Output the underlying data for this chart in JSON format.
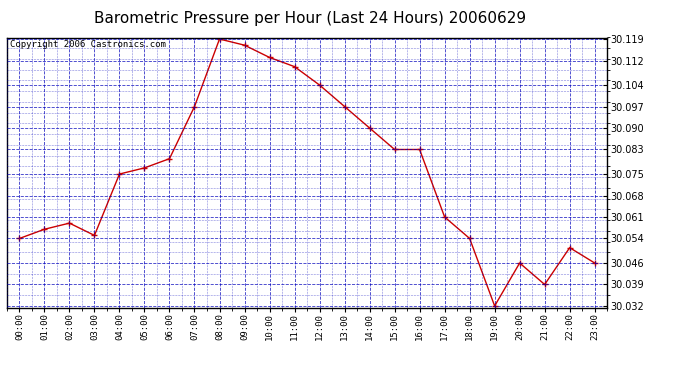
{
  "title": "Barometric Pressure per Hour (Last 24 Hours) 20060629",
  "copyright": "Copyright 2006 Castronics.com",
  "hours": [
    "00:00",
    "01:00",
    "02:00",
    "03:00",
    "04:00",
    "05:00",
    "06:00",
    "07:00",
    "08:00",
    "09:00",
    "10:00",
    "11:00",
    "12:00",
    "13:00",
    "14:00",
    "15:00",
    "16:00",
    "17:00",
    "18:00",
    "19:00",
    "20:00",
    "21:00",
    "22:00",
    "23:00"
  ],
  "values": [
    30.054,
    30.057,
    30.059,
    30.055,
    30.075,
    30.077,
    30.08,
    30.097,
    30.119,
    30.117,
    30.113,
    30.11,
    30.104,
    30.097,
    30.09,
    30.083,
    30.083,
    30.061,
    30.054,
    30.032,
    30.046,
    30.039,
    30.051,
    30.046
  ],
  "ylim_min": 30.032,
  "ylim_max": 30.119,
  "yticks": [
    30.032,
    30.039,
    30.046,
    30.054,
    30.061,
    30.068,
    30.075,
    30.083,
    30.09,
    30.097,
    30.104,
    30.112,
    30.119
  ],
  "line_color": "#cc0000",
  "marker_color": "#cc0000",
  "plot_bg": "#ffffff",
  "grid_color": "#0000bb",
  "title_fontsize": 11,
  "copyright_fontsize": 6.5
}
